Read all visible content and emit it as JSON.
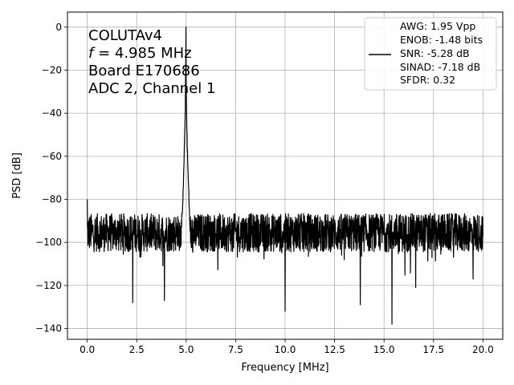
{
  "chart_data": {
    "type": "line",
    "xlabel": "Frequency [MHz]",
    "ylabel": "PSD [dB]",
    "xlim": [
      -1.0,
      21.0
    ],
    "ylim": [
      -145.0,
      7.0
    ],
    "x_ticks": [
      0.0,
      2.5,
      5.0,
      7.5,
      10.0,
      12.5,
      15.0,
      17.5,
      20.0
    ],
    "x_tick_labels": [
      "0.0",
      "2.5",
      "5.0",
      "7.5",
      "10.0",
      "12.5",
      "15.0",
      "17.5",
      "20.0"
    ],
    "y_ticks": [
      0,
      -20,
      -40,
      -60,
      -80,
      -100,
      -120,
      -140
    ],
    "y_tick_labels": [
      "0",
      "−20",
      "−40",
      "−60",
      "−80",
      "−100",
      "−120",
      "−140"
    ],
    "grid": true,
    "annotation": {
      "line1": "COLUTAv4",
      "line2_symbol": "f",
      "line2_rest": " = 4.985 MHz",
      "line3": "Board E170686",
      "line4": "ADC 2, Channel 1"
    },
    "legend": {
      "placement": "upper right",
      "lines": [
        "AWG: 1.95 Vpp",
        "ENOB: -1.48 bits",
        "SNR: -5.28 dB",
        "SINAD: -7.18 dB",
        "SFDR: 0.32"
      ]
    },
    "series": [
      {
        "color": "#000000",
        "peak": {
          "x": 4.985,
          "y": 0
        },
        "noise_floor": {
          "x_range": [
            0.0,
            20.0
          ],
          "y_typical": [
            -104,
            -87
          ]
        },
        "spurs": [
          {
            "x": 0.0,
            "y": -80
          },
          {
            "x": 2.3,
            "y": -128
          },
          {
            "x": 3.9,
            "y": -127
          },
          {
            "x": 10.0,
            "y": -132
          },
          {
            "x": 13.8,
            "y": -129
          },
          {
            "x": 15.4,
            "y": -138
          },
          {
            "x": 16.6,
            "y": -121
          },
          {
            "x": 19.5,
            "y": -117
          }
        ]
      }
    ]
  }
}
